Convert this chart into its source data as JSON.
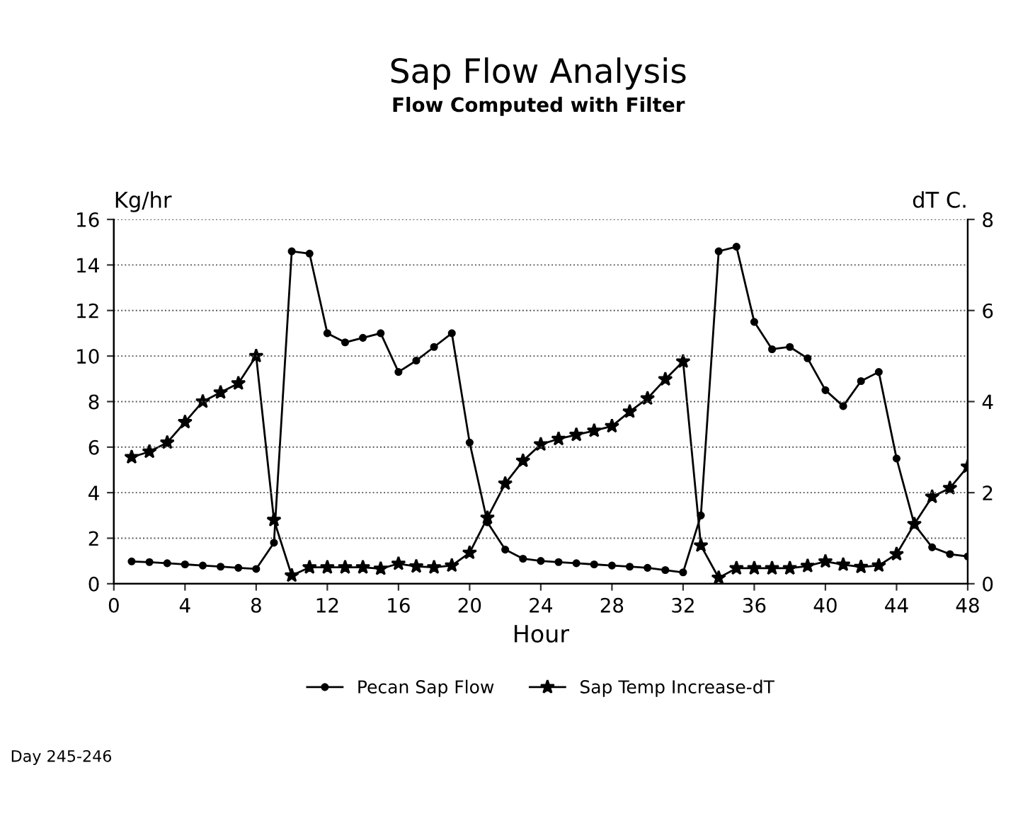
{
  "chart_data": {
    "type": "line",
    "title": "Sap Flow Analysis",
    "subtitle": "Flow Computed with Filter",
    "xlabel": "Hour",
    "ylabel": "Kg/hr",
    "y2label": "dT C.",
    "x": [
      1,
      2,
      3,
      4,
      5,
      6,
      7,
      8,
      9,
      10,
      11,
      12,
      13,
      14,
      15,
      16,
      17,
      18,
      19,
      20,
      21,
      22,
      23,
      24,
      25,
      26,
      27,
      28,
      29,
      30,
      31,
      32,
      33,
      34,
      35,
      36,
      37,
      38,
      39,
      40,
      41,
      42,
      43,
      44,
      45,
      46,
      47,
      48
    ],
    "series": [
      {
        "name": "Pecan Sap Flow",
        "color": "#000000",
        "marker": "circle",
        "values": [
          0.98,
          0.95,
          0.9,
          0.85,
          0.8,
          0.75,
          0.7,
          0.65,
          1.8,
          14.6,
          14.5,
          11.0,
          10.6,
          10.8,
          11.0,
          9.3,
          9.8,
          10.4,
          11.0,
          6.2,
          2.7,
          1.5,
          1.1,
          1.0,
          0.95,
          0.9,
          0.85,
          0.8,
          0.75,
          0.7,
          0.6,
          0.5,
          3.0,
          14.6,
          14.8,
          11.5,
          10.3,
          10.4,
          9.9,
          8.5,
          7.8,
          8.9,
          9.3,
          5.5,
          2.6,
          1.6,
          1.3,
          1.2
        ]
      },
      {
        "name": "Sap Temp Increase-dT",
        "color": "#000000",
        "marker": "star",
        "axis": "y2",
        "values": [
          2.78,
          2.9,
          3.1,
          3.55,
          4.0,
          4.2,
          4.4,
          5.0,
          1.4,
          0.18,
          0.36,
          0.36,
          0.36,
          0.36,
          0.33,
          0.44,
          0.38,
          0.36,
          0.4,
          0.68,
          1.45,
          2.2,
          2.7,
          3.06,
          3.18,
          3.27,
          3.36,
          3.46,
          3.78,
          4.07,
          4.49,
          4.88,
          0.84,
          0.13,
          0.34,
          0.34,
          0.34,
          0.34,
          0.39,
          0.49,
          0.42,
          0.37,
          0.4,
          0.65,
          1.31,
          1.91,
          2.1,
          2.57
        ]
      }
    ],
    "xlim": [
      0,
      48
    ],
    "xticks": [
      0,
      4,
      8,
      12,
      16,
      20,
      24,
      28,
      32,
      36,
      40,
      44,
      48
    ],
    "ylim": [
      0,
      16
    ],
    "yticks": [
      0,
      2,
      4,
      6,
      8,
      10,
      12,
      14,
      16
    ],
    "y2lim": [
      0,
      8
    ],
    "y2ticks": [
      0,
      2,
      4,
      6,
      8
    ],
    "grid": "y",
    "legend": "bottom",
    "line_style": "solid",
    "annotations": [
      "Day 245-246"
    ]
  }
}
